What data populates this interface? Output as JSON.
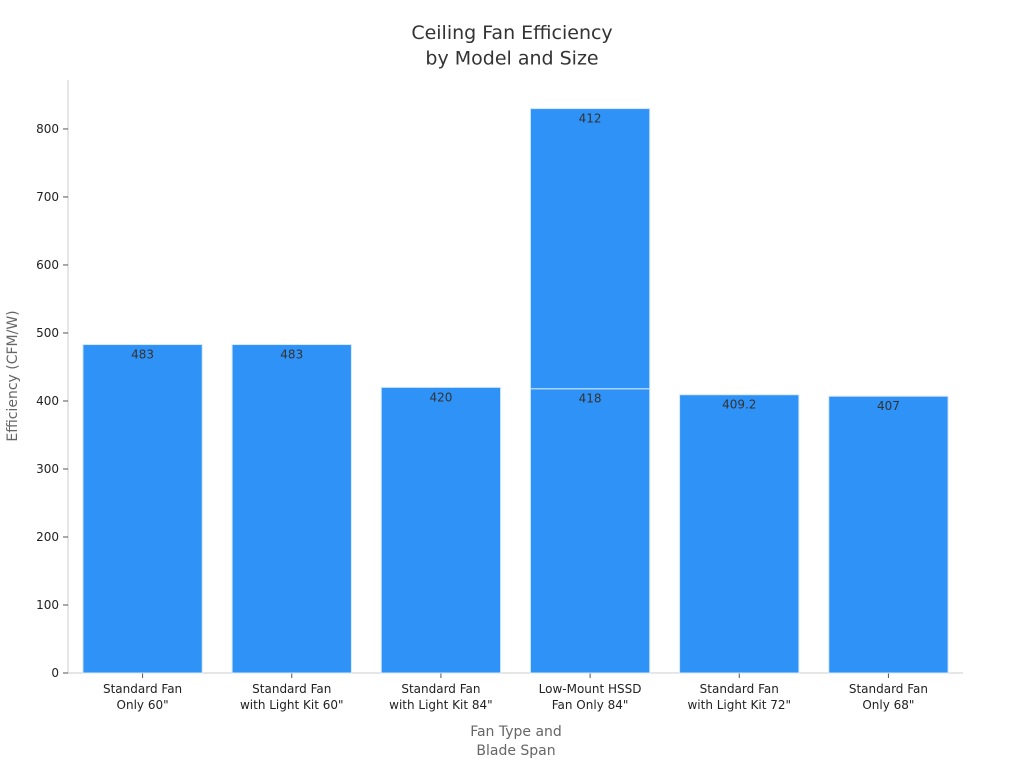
{
  "chart_data": {
    "type": "stacked_bar",
    "title": "Ceiling Fan Efficiency\nby Model and Size",
    "x_label": "Fan Type and\nBlade Span",
    "y_label": "Efficiency (CFM/W)",
    "categories": [
      "Standard Fan\nOnly 60\"",
      "Standard Fan\nwith Light Kit 60\"",
      "Standard Fan\nwith Light Kit 84\"",
      "Low-Mount HSSD\nFan Only 84\"",
      "Standard Fan\nwith Light Kit 72\"",
      "Standard Fan\nOnly 68\""
    ],
    "series": [
      {
        "color": "#2f92f7",
        "values": [
          483,
          483,
          420,
          418,
          409.2,
          407
        ]
      },
      {
        "color": "#2f92f7",
        "values": [
          null,
          null,
          null,
          412,
          null,
          null
        ]
      }
    ],
    "ylim": [
      0,
      872
    ],
    "yticks": [
      0,
      100,
      200,
      300,
      400,
      500,
      600,
      700,
      800
    ],
    "grid": false
  }
}
